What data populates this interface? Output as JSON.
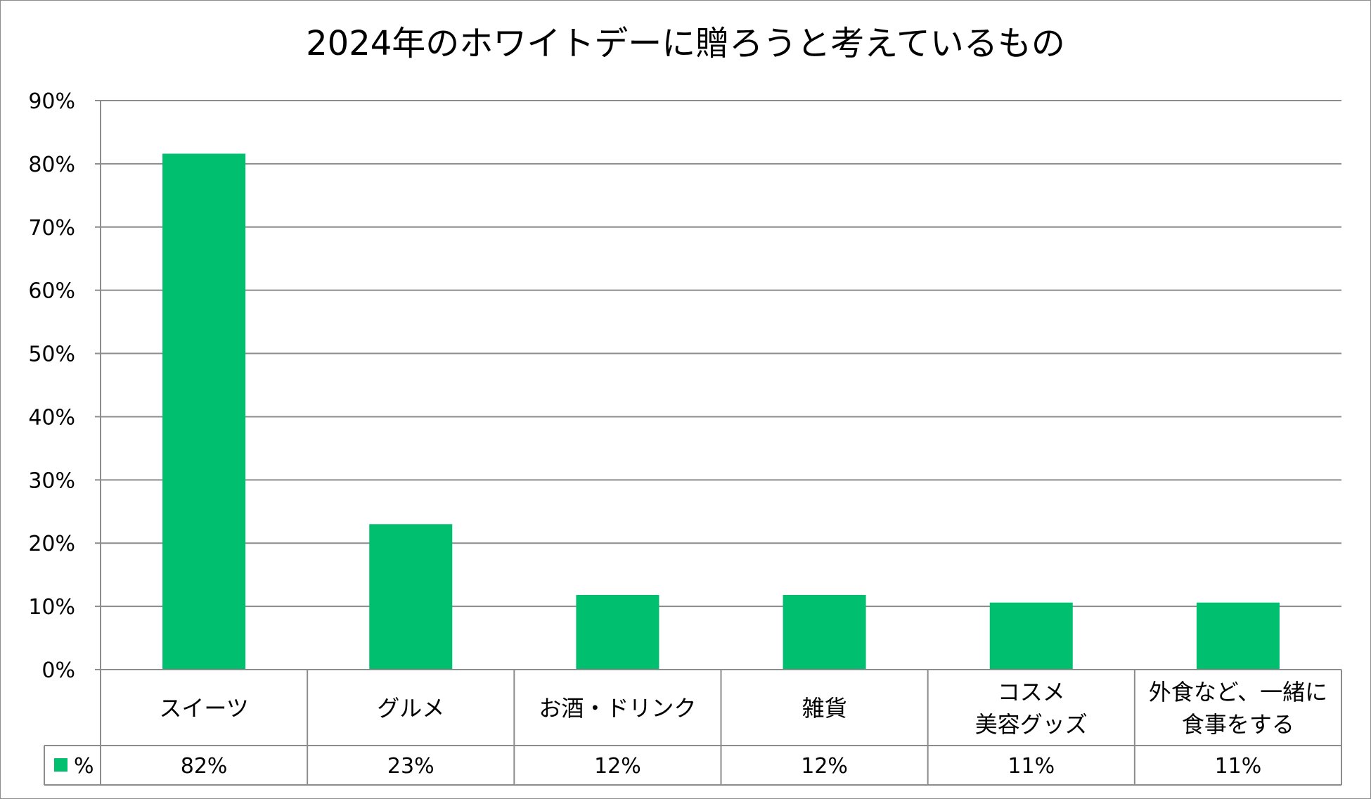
{
  "chart_data": {
    "type": "bar",
    "title": "2024年のホワイトデーに贈ろうと考えているもの",
    "categories": [
      [
        "スイーツ"
      ],
      [
        "グルメ"
      ],
      [
        "お酒・ドリンク"
      ],
      [
        "雑貨"
      ],
      [
        "コスメ",
        "美容グッズ"
      ],
      [
        "外食など、一緒に",
        "食事をする"
      ]
    ],
    "series": [
      {
        "name": "%",
        "values": [
          81.6,
          23.0,
          11.8,
          11.8,
          10.6,
          10.6
        ],
        "value_labels": [
          "82%",
          "23%",
          "12%",
          "12%",
          "11%",
          "11%"
        ],
        "color": "#00bf6f"
      }
    ],
    "yticks": [
      "0%",
      "10%",
      "20%",
      "30%",
      "40%",
      "50%",
      "60%",
      "70%",
      "80%",
      "90%"
    ],
    "ylim": [
      0,
      90
    ],
    "grid": true,
    "legend": "data-table",
    "gridline_color": "#8c8c8c"
  }
}
